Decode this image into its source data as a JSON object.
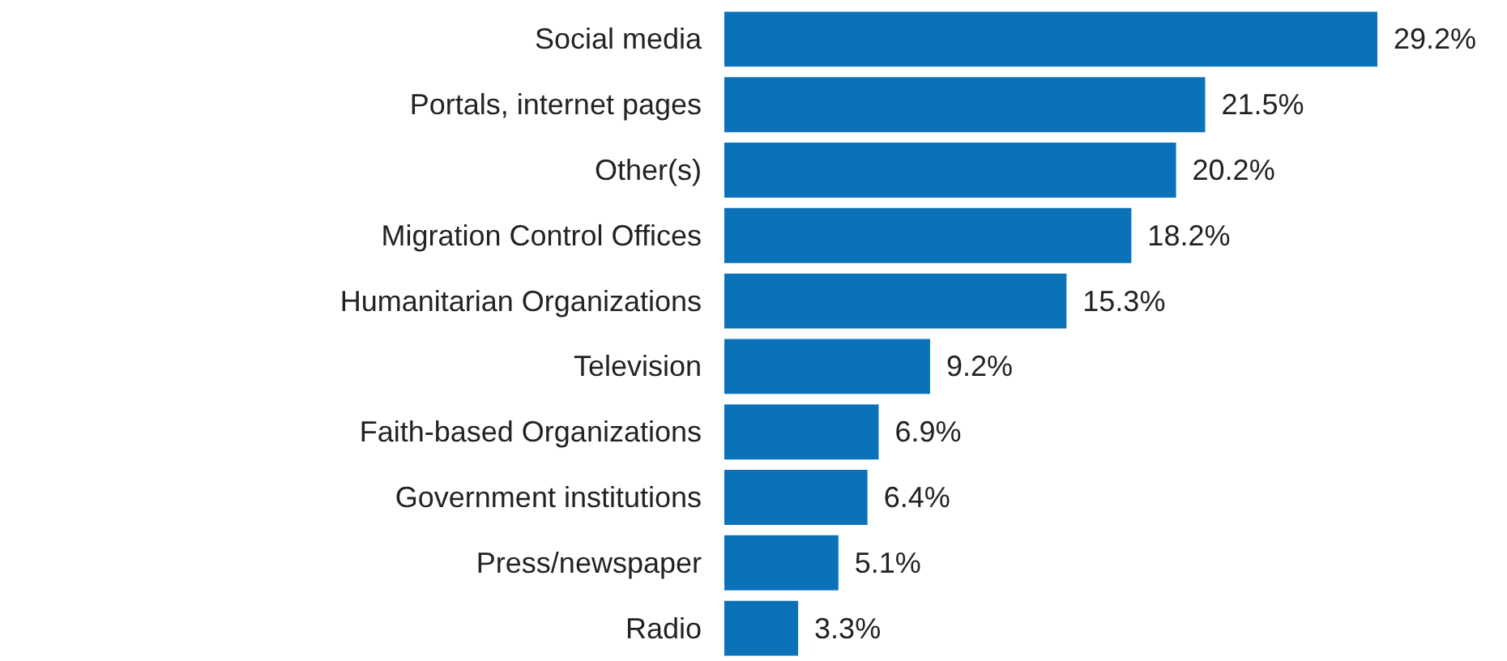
{
  "chart_data": {
    "type": "bar",
    "orientation": "horizontal",
    "categories": [
      "Social media",
      "Portals, internet pages",
      "Other(s)",
      "Migration Control Offices",
      "Humanitarian Organizations",
      "Television",
      "Faith-based Organizations",
      "Government institutions",
      "Press/newspaper",
      "Radio"
    ],
    "values": [
      29.2,
      21.5,
      20.2,
      18.2,
      15.3,
      9.2,
      6.9,
      6.4,
      5.1,
      3.3
    ],
    "value_labels": [
      "29.2%",
      "21.5%",
      "20.2%",
      "18.2%",
      "15.3%",
      "9.2%",
      "6.9%",
      "6.4%",
      "5.1%",
      "3.3%"
    ],
    "color": "#0b72ba"
  }
}
